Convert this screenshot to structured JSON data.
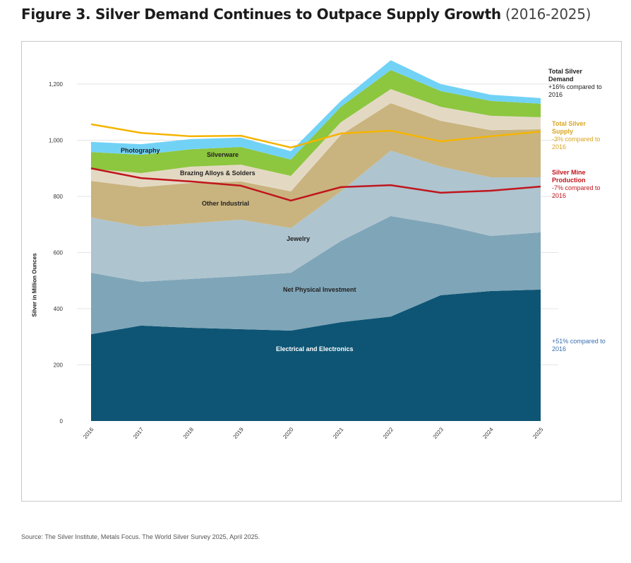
{
  "title": {
    "main": "Figure 3. Silver Demand Continues to Outpace Supply Growth",
    "years": "(2016-2025)"
  },
  "source": "Source: The Silver Institute, Metals Focus. The World Silver Survey 2025, April 2025.",
  "chart_data": {
    "type": "area",
    "stacked": true,
    "ylabel": "Silver in Million Ounces",
    "xlabel": "",
    "ylim": [
      0,
      1200
    ],
    "yticks": [
      0,
      200,
      400,
      600,
      800,
      1000,
      1200
    ],
    "ytick_labels": [
      "0",
      "200",
      "400",
      "600",
      "800",
      "1,000",
      "1,200"
    ],
    "grid": true,
    "categories": [
      "2016",
      "2017",
      "2018",
      "2019",
      "2020",
      "2021",
      "2022",
      "2023",
      "2024",
      "2025"
    ],
    "series": [
      {
        "name": "Electrical and Electronics",
        "color": "#0e5575",
        "label_color": "#ffffff",
        "values": [
          309,
          340,
          332,
          327,
          322,
          352,
          372,
          448,
          463,
          468
        ]
      },
      {
        "name": "Net Physical Investment",
        "color": "#7fa5b8",
        "values": [
          219,
          156,
          174,
          189,
          206,
          289,
          358,
          252,
          196,
          204
        ]
      },
      {
        "name": "Jewelry",
        "color": "#aec4cf",
        "values": [
          197,
          196,
          198,
          201,
          159,
          177,
          233,
          206,
          209,
          196
        ]
      },
      {
        "name": "Other Industrial",
        "color": "#c9b47f",
        "values": [
          130,
          141,
          144,
          136,
          131,
          201,
          169,
          163,
          168,
          171
        ]
      },
      {
        "name": "Brazing Alloys & Solders",
        "color": "#e3d9c3",
        "values": [
          43,
          50,
          58,
          60,
          55,
          45,
          50,
          50,
          51,
          43
        ]
      },
      {
        "name": "Silverware",
        "color": "#8dc63f",
        "values": [
          60,
          65,
          62,
          63,
          58,
          55,
          68,
          56,
          53,
          48
        ]
      },
      {
        "name": "Photography",
        "color": "#72d2f6",
        "values": [
          36,
          38,
          36,
          33,
          30,
          21,
          35,
          25,
          22,
          20
        ]
      }
    ],
    "lines": [
      {
        "name": "Total Silver Supply",
        "color": "#f5b400",
        "values": [
          1057,
          1026,
          1014,
          1016,
          974,
          1024,
          1034,
          996,
          1014,
          1031
        ]
      },
      {
        "name": "Silver Mine Production",
        "color": "#c0161d",
        "values": [
          900,
          865,
          853,
          838,
          785,
          833,
          840,
          813,
          820,
          835
        ]
      }
    ],
    "annotations": [
      {
        "heading": "Total Silver Demand",
        "text": "+16% compared to 2016",
        "color": "#222222"
      },
      {
        "heading": "Total Silver Supply",
        "text": "-3% compared to 2016",
        "color": "#d9a520"
      },
      {
        "heading": "Silver Mine Production",
        "text": "-7% compared to 2016",
        "color": "#c0161d"
      },
      {
        "heading": "",
        "text": "+51% compared to 2016",
        "color": "#3a6fb0"
      }
    ]
  }
}
